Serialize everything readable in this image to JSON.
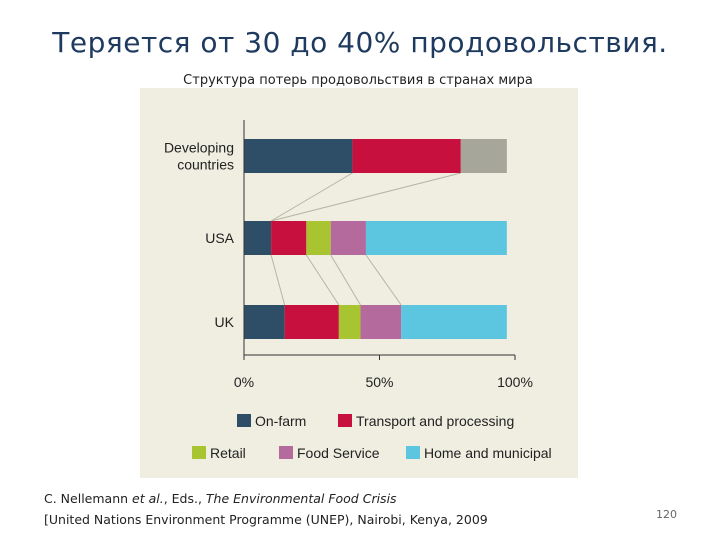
{
  "slide": {
    "title": "Теряется от 30 до 40% продовольствия.",
    "page_number": "120"
  },
  "citation": {
    "authors_prefix": "C. Nellemann ",
    "et_al": "et al.",
    "eds": ", Eds., ",
    "book_title": "The Environmental Food Crisis",
    "line2": "[United Nations Environment Programme (UNEP), Nairobi, Kenya, 2009"
  },
  "chart_data": {
    "type": "bar",
    "orientation": "horizontal",
    "stacked": true,
    "title": "Структура потерь продовольствия в странах мира",
    "categories": [
      "Developing countries",
      "USA",
      "UK"
    ],
    "category_label_lines": [
      [
        "Developing",
        "countries"
      ],
      [
        "USA"
      ],
      [
        "UK"
      ]
    ],
    "xlim": [
      0,
      100
    ],
    "xticks": [
      "0%",
      "50%",
      "100%"
    ],
    "legend_position": "bottom",
    "grid": false,
    "series": [
      {
        "name": "On-farm",
        "color": "#2e4d66",
        "values": [
          40,
          10,
          15
        ]
      },
      {
        "name": "Transport and processing",
        "color": "#c8103e",
        "values": [
          40,
          13,
          20
        ]
      },
      {
        "name": "Retail",
        "color": "#a8c431",
        "values": [
          0,
          9,
          8
        ]
      },
      {
        "name": "Food Service",
        "color": "#b46a9c",
        "values": [
          0,
          13,
          15
        ]
      },
      {
        "name": "Home and municipal",
        "color": "#5cc6e0",
        "values": [
          0,
          52,
          39
        ]
      },
      {
        "name": "",
        "color": "#a6a79a",
        "values": [
          17,
          0,
          0
        ]
      }
    ],
    "connector_color": "#b5b5a5"
  }
}
